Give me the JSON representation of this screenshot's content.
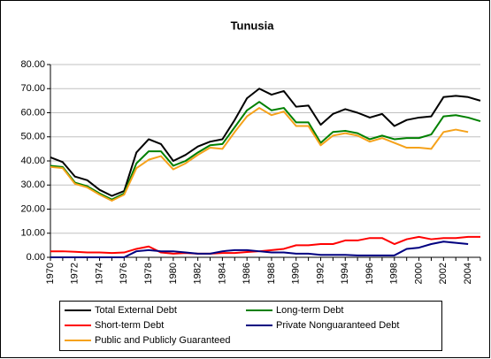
{
  "chart_data": {
    "type": "line",
    "title": "Tunusia",
    "categories": [
      "1970",
      null,
      "1972",
      null,
      "1974",
      null,
      "1976",
      null,
      "1978",
      null,
      "1980",
      null,
      "1982",
      null,
      "1984",
      null,
      "1986",
      null,
      "1988",
      null,
      "1990",
      null,
      "1992",
      null,
      "1994",
      null,
      "1996",
      null,
      "1998",
      null,
      "2000",
      null,
      "2002",
      null,
      "2004",
      null
    ],
    "series": [
      {
        "name": "Total External Debt",
        "color": "#000000",
        "values": [
          41.5,
          39.5,
          33.5,
          32,
          28,
          25.5,
          27.5,
          43.5,
          49,
          47,
          40,
          42.5,
          46,
          48,
          49,
          57,
          66,
          70,
          67.5,
          69,
          62.5,
          63,
          55,
          59.5,
          61.5,
          60,
          58,
          59.5,
          54.5,
          57,
          58,
          58.5,
          66.5,
          67,
          66.5,
          65
        ]
      },
      {
        "name": "Long-term Debt",
        "color": "#008000",
        "values": [
          38,
          37.5,
          31,
          29.5,
          26.5,
          24,
          26.5,
          39,
          44,
          44,
          38,
          40,
          43.5,
          46.5,
          47,
          54,
          61,
          64.5,
          61,
          62,
          56,
          56,
          47.5,
          52,
          52.5,
          51.5,
          49,
          50.5,
          49,
          49.5,
          49.5,
          51,
          58.5,
          59,
          58,
          56.5
        ]
      },
      {
        "name": "Short-term Debt",
        "color": "#ff0000",
        "values": [
          2.5,
          2.5,
          2.3,
          2,
          2,
          1.8,
          2,
          3.5,
          4.5,
          2,
          1.5,
          1.8,
          1.5,
          1.5,
          1.8,
          1.8,
          2.2,
          2.5,
          3,
          3.5,
          5,
          5,
          5.5,
          5.5,
          7,
          7,
          8,
          8,
          5.5,
          7.5,
          8.5,
          7.5,
          8,
          8,
          8.5,
          8.5
        ]
      },
      {
        "name": "Private Nonguaranteed Debt",
        "color": "#000080",
        "values": [
          0,
          0,
          0,
          0,
          0,
          0,
          0,
          2.5,
          3,
          2.5,
          2.5,
          2,
          1.5,
          1.5,
          2.5,
          3,
          3,
          2.5,
          2,
          2,
          1.5,
          1.5,
          1,
          1,
          1,
          0.8,
          0.8,
          0.8,
          0.8,
          3.5,
          4,
          5.5,
          6.5,
          6,
          5.5,
          null
        ]
      },
      {
        "name": "Public and Publicly Guaranteed",
        "color": "#f5a21b",
        "values": [
          37.5,
          37,
          30.5,
          29,
          26,
          23.5,
          26,
          37,
          40.5,
          42,
          36.5,
          39,
          42.5,
          45.5,
          45,
          52,
          58.5,
          62,
          59,
          60.5,
          54.5,
          54.5,
          46.5,
          50.5,
          51.5,
          50.5,
          48,
          49.5,
          47.5,
          45.5,
          45.5,
          45,
          52,
          53,
          52,
          null
        ]
      }
    ],
    "ylim": [
      0,
      80
    ],
    "yticks": [
      {
        "value": 0,
        "label": "0.00"
      },
      {
        "value": 10,
        "label": "10.00"
      },
      {
        "value": 20,
        "label": "20.00"
      },
      {
        "value": 30,
        "label": "30.00"
      },
      {
        "value": 40,
        "label": "40.00"
      },
      {
        "value": 50,
        "label": "50.00"
      },
      {
        "value": 60,
        "label": "60.00"
      },
      {
        "value": 70,
        "label": "70.00"
      },
      {
        "value": 80,
        "label": "80.00"
      }
    ],
    "grid": true
  }
}
